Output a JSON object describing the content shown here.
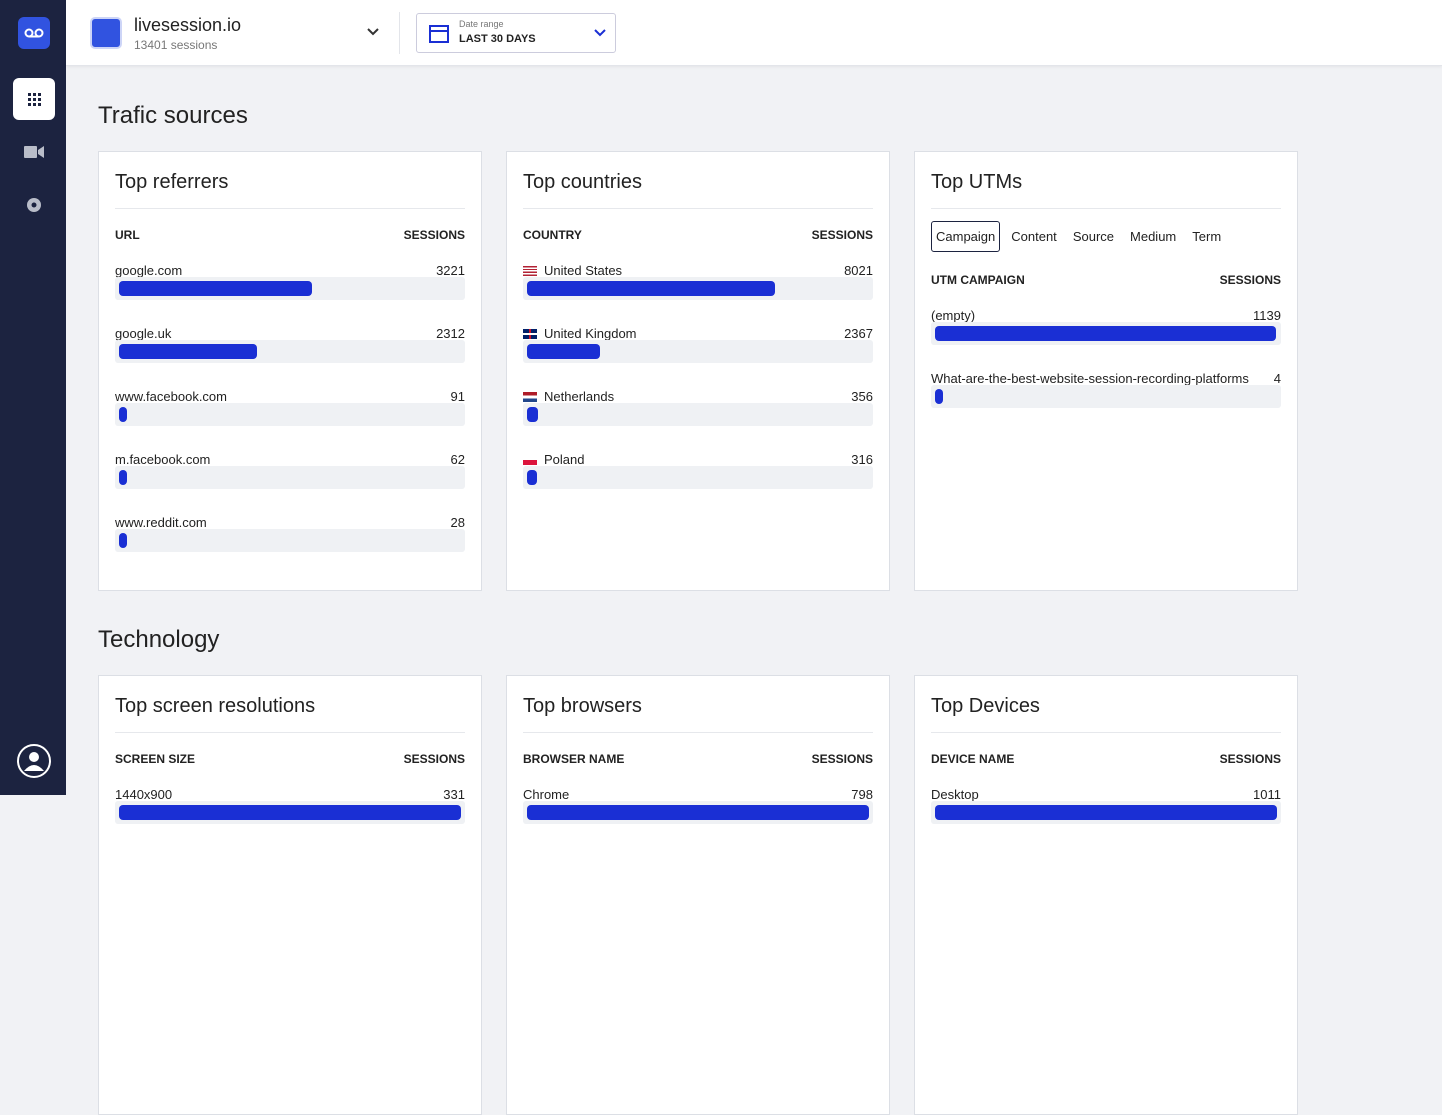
{
  "header": {
    "site": "livesession.io",
    "sessions": "13401 sessions",
    "date_label": "Date range",
    "date_value": "LAST 30 DAYS"
  },
  "sections": [
    {
      "title": "Trafic sources",
      "cards": [
        {
          "title": "Top referrers",
          "columns": [
            "URL",
            "SESSIONS"
          ],
          "rows": [
            {
              "label": "google.com",
              "value": 3221
            },
            {
              "label": "google.uk",
              "value": 2312
            },
            {
              "label": "www.facebook.com",
              "value": 91
            },
            {
              "label": "m.facebook.com",
              "value": 62
            },
            {
              "label": "www.reddit.com",
              "value": 28
            }
          ]
        },
        {
          "title": "Top countries",
          "columns": [
            "COUNTRY",
            "SESSIONS"
          ],
          "rows": [
            {
              "label": "United States",
              "value": 8021
            },
            {
              "label": "United Kingdom",
              "value": 2367
            },
            {
              "label": "Netherlands",
              "value": 356
            },
            {
              "label": "Poland",
              "value": 316
            }
          ]
        },
        {
          "title": "Top UTMs",
          "tabs": [
            "Campaign",
            "Content",
            "Source",
            "Medium",
            "Term"
          ],
          "columns": [
            "UTM CAMPAIGN",
            "SESSIONS"
          ],
          "rows": [
            {
              "label": "(empty)",
              "value": 1139
            },
            {
              "label": "What-are-the-best-website-session-recording-platforms",
              "value": 4
            }
          ]
        }
      ]
    },
    {
      "title": "Technology",
      "cards": [
        {
          "title": "Top screen resolutions",
          "columns": [
            "SCREEN SIZE",
            "SESSIONS"
          ],
          "rows": [
            {
              "label": "1440x900",
              "value": 331
            }
          ]
        },
        {
          "title": "Top browsers",
          "columns": [
            "BROWSER NAME",
            "SESSIONS"
          ],
          "rows": [
            {
              "label": "Chrome",
              "value": 798
            }
          ]
        },
        {
          "title": "Top Devices",
          "columns": [
            "DEVICE NAME",
            "SESSIONS"
          ],
          "rows": [
            {
              "label": "Desktop",
              "value": 1011
            }
          ]
        }
      ]
    }
  ]
}
